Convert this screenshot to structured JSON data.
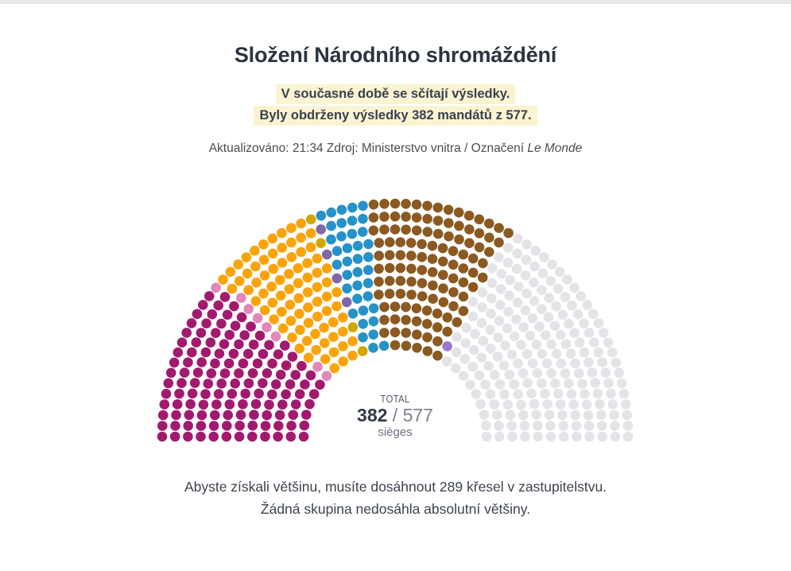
{
  "page": {
    "top_strip_color": "#e8e8e8",
    "background": "#ffffff"
  },
  "header": {
    "title": "Složení Národního shromáždění"
  },
  "status": {
    "line1": "V současné době se sčítají výsledky.",
    "line2": "Byly obdrženy výsledky 382 mandátů z 577.",
    "highlight_color": "#fcf3d1"
  },
  "meta": {
    "updated": "Aktualizováno: 21:34 Zdroj: Ministerstvo vnitra / Označení",
    "attribution": "Le Monde"
  },
  "center_label": {
    "total_label": "TOTAL",
    "counted": "382",
    "separator": " / ",
    "total": "577",
    "unit": "sièges"
  },
  "footer": {
    "line1": "Abyste získali většinu, musíte dosáhnout 289 křesel v zastupitelstvu.",
    "line2": "Žádná skupina nedosáhla absolutní většiny."
  },
  "chart_data": {
    "type": "parliament",
    "title": "Složení Národního shromáždění",
    "total_seats": 577,
    "seats_counted": 382,
    "seats_pending": 195,
    "majority_threshold": 289,
    "legend": "none",
    "groups": [
      {
        "name": "left-bloc-magenta",
        "color": "#a21a6e",
        "seats": 130
      },
      {
        "name": "misc-left-pink",
        "color": "#e287ba",
        "seats": 8
      },
      {
        "name": "centre-bloc-orange",
        "color": "#fba30a",
        "seats": 82
      },
      {
        "name": "misc-centre-gold",
        "color": "#d1a800",
        "seats": 4
      },
      {
        "name": "misc-violet",
        "color": "#7f68a8",
        "seats": 4
      },
      {
        "name": "right-bloc-blue",
        "color": "#2792c8",
        "seats": 38
      },
      {
        "name": "far-right-bloc-brown",
        "color": "#8a5a22",
        "seats": 115
      },
      {
        "name": "misc-light-violet",
        "color": "#9a79c9",
        "seats": 1
      },
      {
        "name": "pending-gray",
        "color": "#e4e4e8",
        "seats": 195
      }
    ]
  }
}
